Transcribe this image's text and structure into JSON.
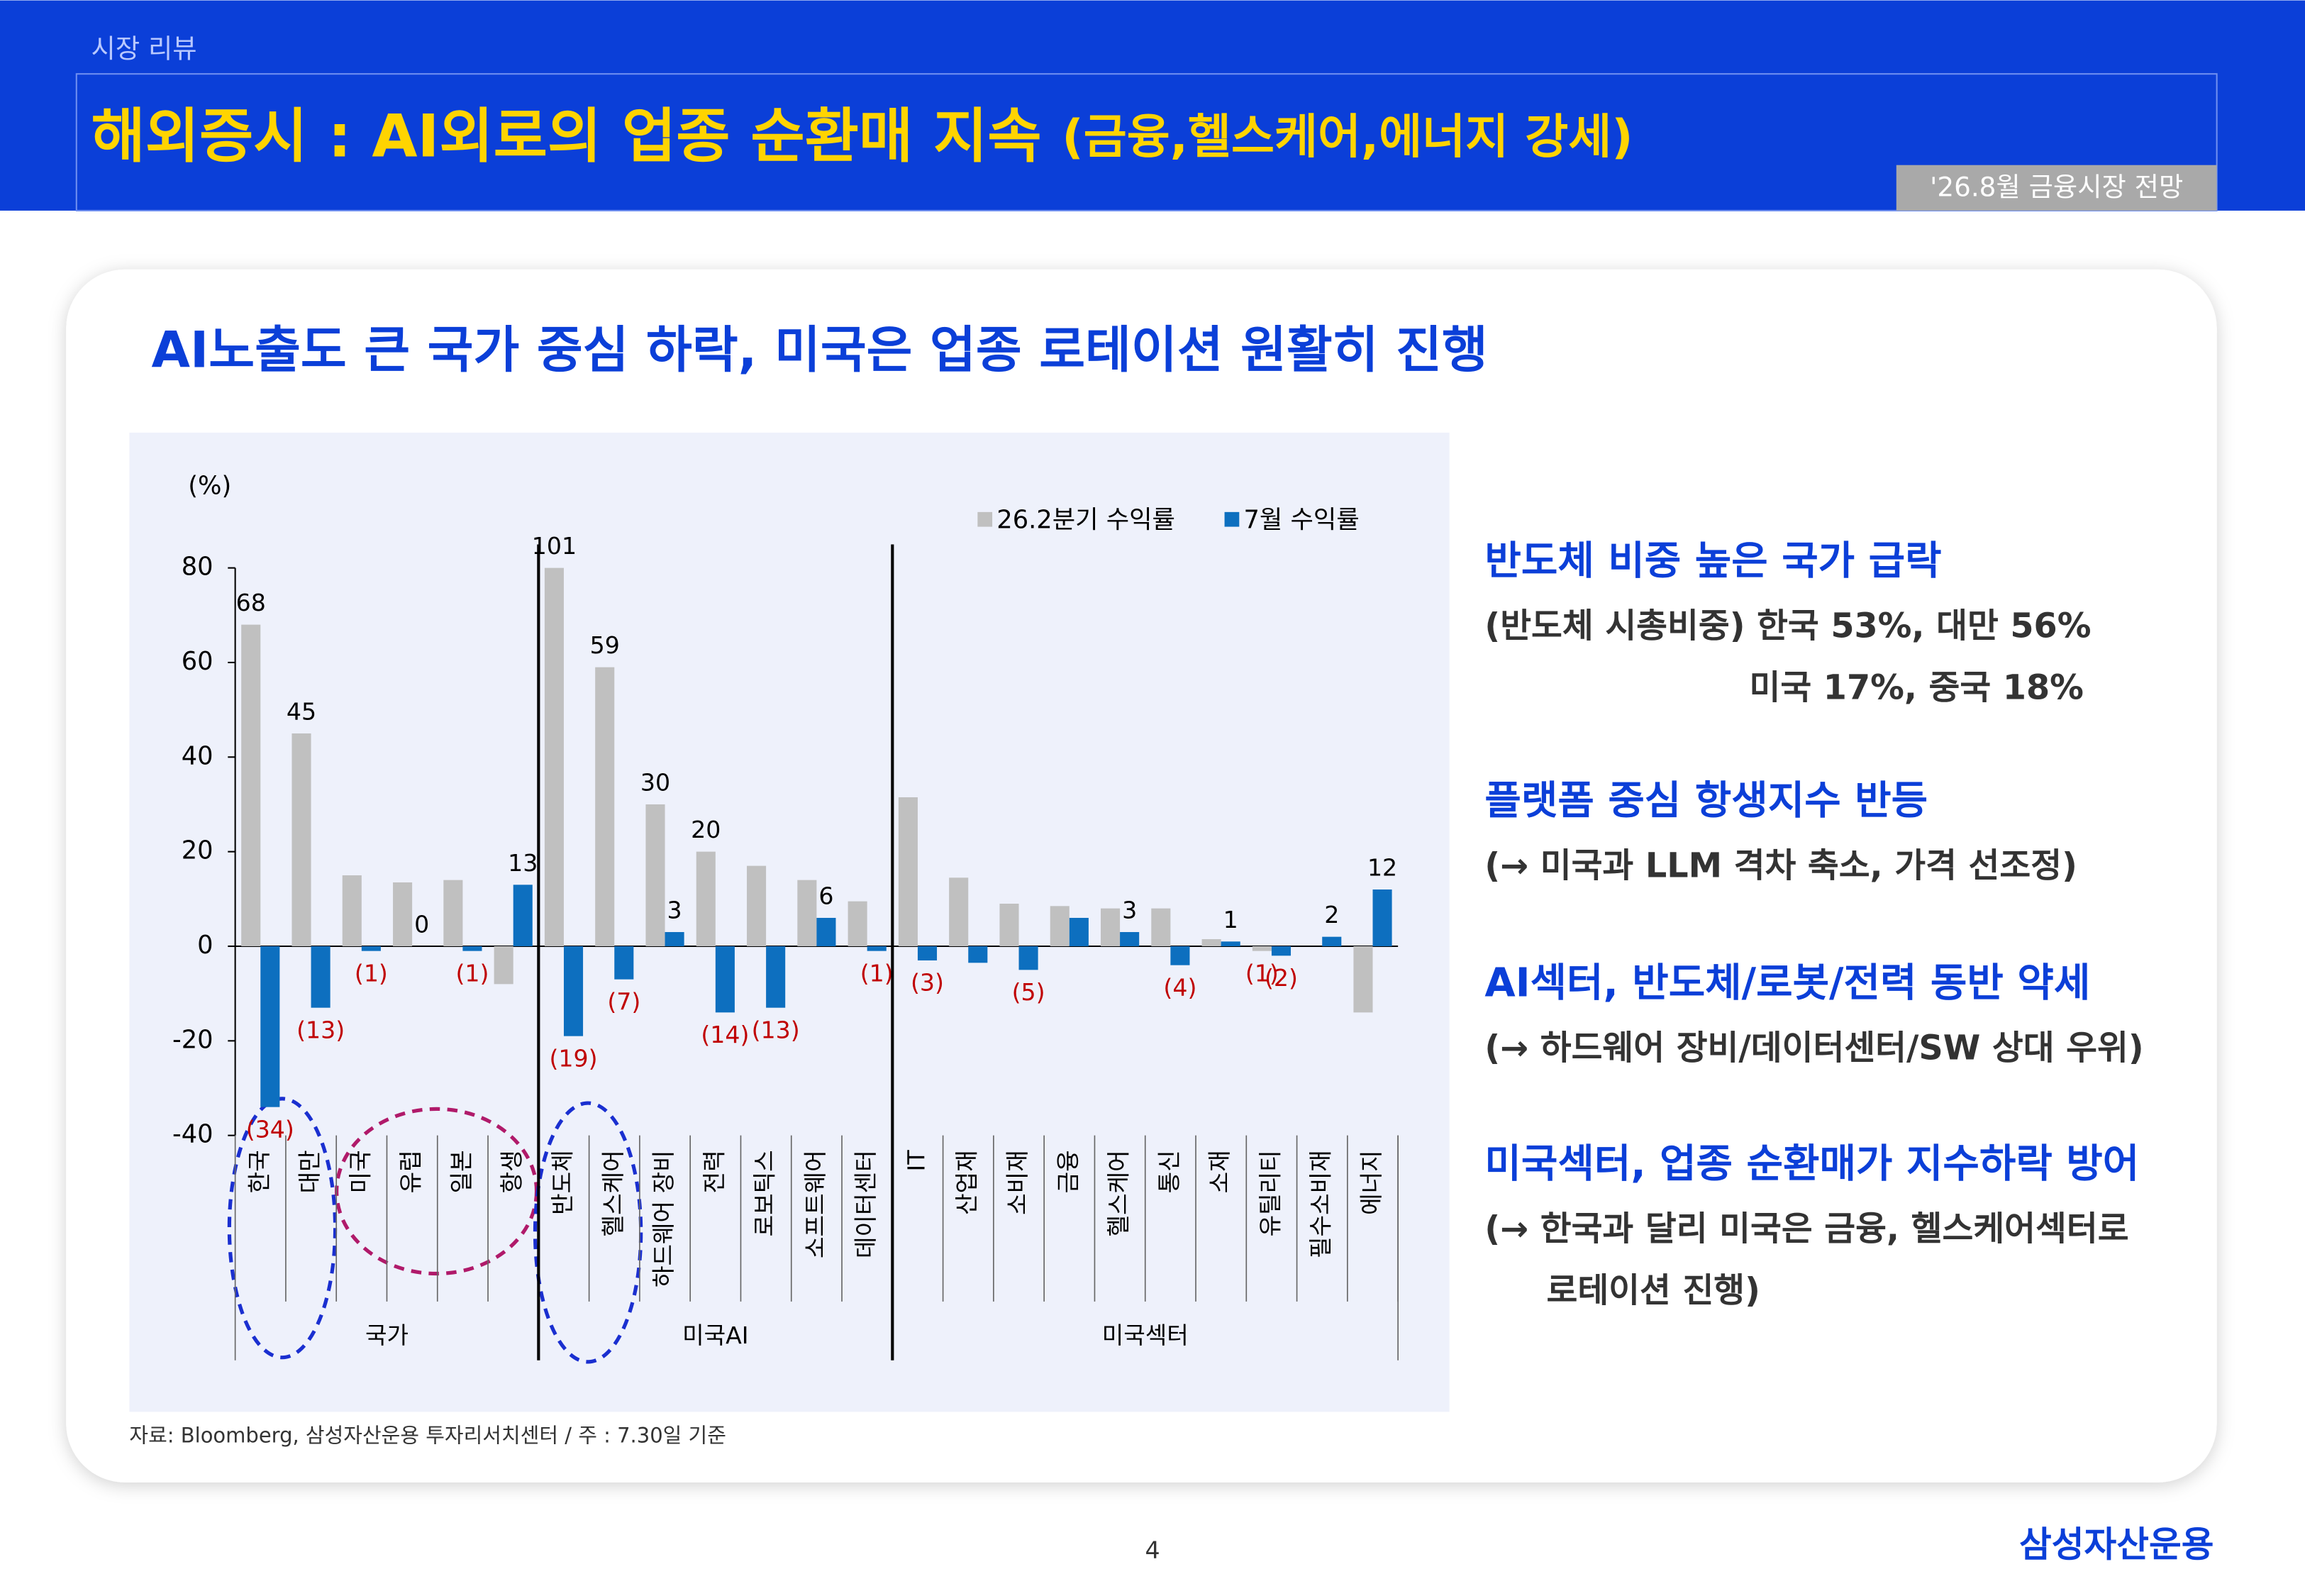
{
  "header": {
    "section": "시장 리뷰",
    "title": "해외증시 : AI외로의 업종 순환매 지속",
    "title_suffix": "(금융,헬스케어,에너지 강세)",
    "badge": "'26.8월 금융시장 전망"
  },
  "subtitle": "AI노출도 큰 국가 중심 하락, 미국은 업종 로테이션 원활히 진행",
  "chart_data": {
    "type": "bar",
    "unit": "(%)",
    "categories": [
      "한국",
      "대만",
      "미국",
      "유럽",
      "일본",
      "항생",
      "반도체",
      "헬스케어",
      "하드웨어 장비",
      "전력",
      "로보틱스",
      "소프트웨어",
      "데이터센터",
      "IT",
      "산업재",
      "소비재",
      "금융",
      "헬스케어",
      "통신",
      "소재",
      "유틸리티",
      "필수소비재",
      "에너지"
    ],
    "groups": [
      "국가",
      "미국AI",
      "미국섹터"
    ],
    "series": [
      {
        "name": "26.2분기 수익률",
        "color": "#c0c0c0",
        "values": [
          68,
          45,
          15,
          13.5,
          14,
          -8,
          101,
          59,
          30,
          20,
          17,
          14,
          9.5,
          31.5,
          14.5,
          9,
          8.5,
          8,
          8,
          1.5,
          -1,
          0,
          -14
        ],
        "value_labels": [
          "68",
          "45",
          null,
          null,
          null,
          null,
          "101",
          "59",
          "30",
          "20",
          null,
          null,
          null,
          null,
          null,
          null,
          null,
          null,
          null,
          null,
          "(1)",
          null,
          null
        ]
      },
      {
        "name": "7월 수익률",
        "color": "#0d6fbf",
        "values": [
          -34,
          -13,
          -1,
          0,
          -1,
          13,
          -19,
          -7,
          3,
          -14,
          -13,
          6,
          -1,
          -3,
          -3.5,
          -5,
          6,
          3,
          -4,
          1,
          -2,
          2,
          12
        ],
        "value_labels": [
          "(34)",
          "(13)",
          "(1)",
          "0",
          "(1)",
          "13",
          "(19)",
          "(7)",
          "3",
          "(14)",
          "(13)",
          "6",
          "(1)",
          "(3)",
          null,
          "(5)",
          null,
          "3",
          "(4)",
          "1",
          "(2)",
          "2",
          "12"
        ]
      }
    ],
    "ylim": [
      -40,
      80
    ],
    "yticks": [
      -40,
      -20,
      0,
      20,
      40,
      60,
      80
    ],
    "legend": "top-right"
  },
  "notes": [
    {
      "heading": "반도체 비중 높은 국가 급락",
      "lines": [
        "(반도체 시총비중) 한국 53%, 대만 56%",
        "미국 17%, 중국 18%"
      ]
    },
    {
      "heading": "플랫폼 중심 항생지수 반등",
      "lines": [
        "(→ 미국과 LLM 격차 축소, 가격 선조정)"
      ]
    },
    {
      "heading": "AI섹터, 반도체/로봇/전력 동반 약세",
      "lines": [
        "(→ 하드웨어 장비/데이터센터/SW 상대 우위)"
      ]
    },
    {
      "heading": "미국섹터, 업종 순환매가 지수하락 방어",
      "lines": [
        "(→ 한국과 달리 미국은 금융, 헬스케어섹터로",
        "로테이션 진행)"
      ]
    }
  ],
  "source": "자료: Bloomberg, 삼성자산운용 투자리서치센터 / 주 : 7.30일 기준",
  "page_number": "4",
  "logo": "삼성자산운용"
}
